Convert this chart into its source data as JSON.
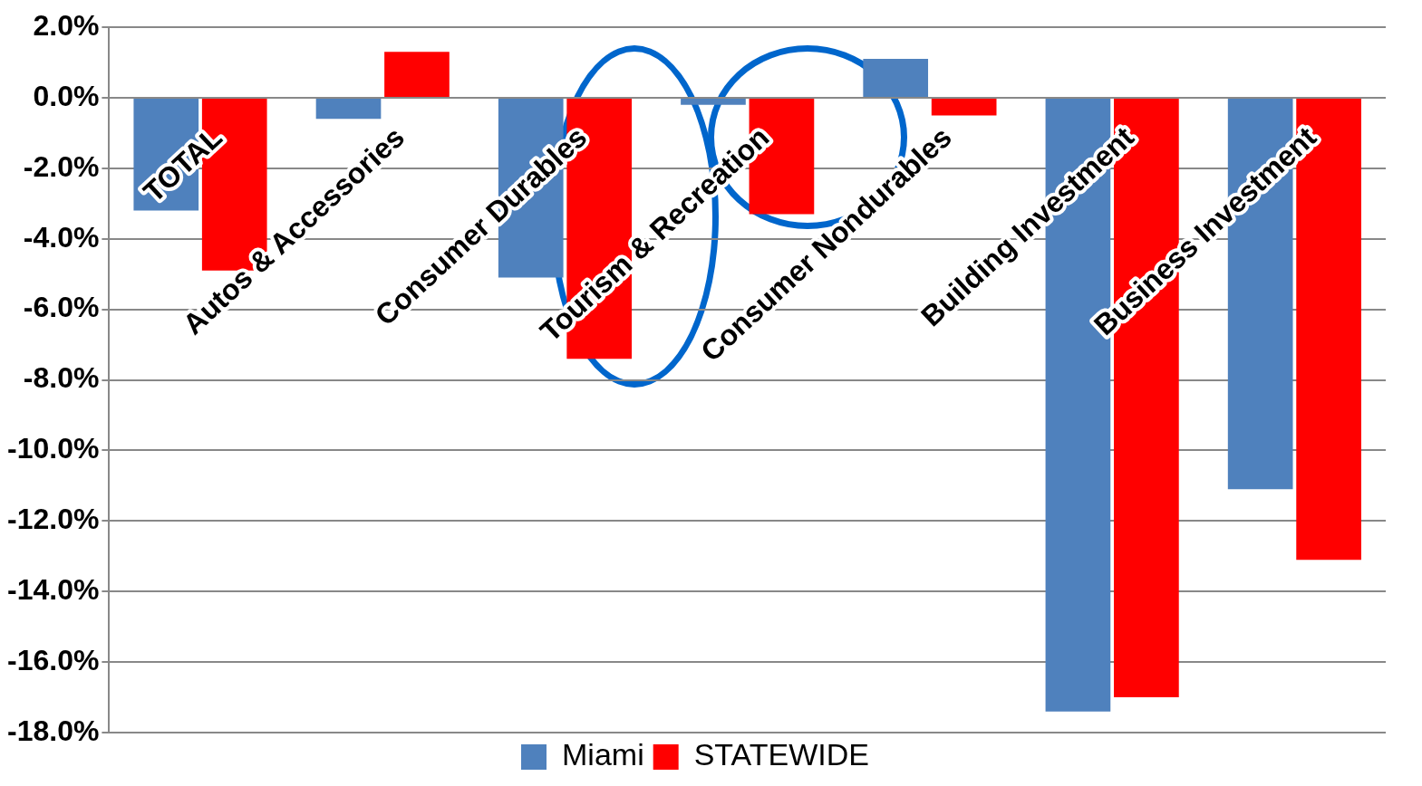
{
  "chart_data": {
    "type": "bar",
    "categories": [
      "TOTAL",
      "Autos & Accessories",
      "Consumer Durables",
      "Tourism & Recreation",
      "Consumer Nondurables",
      "Building Investment",
      "Business Investment"
    ],
    "series": [
      {
        "name": "Miami",
        "color": "#4f81bd",
        "values": [
          -3.2,
          -0.6,
          -5.1,
          -0.2,
          1.1,
          -17.4,
          -11.1
        ]
      },
      {
        "name": "STATEWIDE",
        "color": "#ff0000",
        "values": [
          -4.9,
          1.3,
          -7.4,
          -3.3,
          -0.5,
          -17.0,
          -13.1
        ]
      }
    ],
    "ylim": [
      -18,
      2
    ],
    "yticks": [
      {
        "value": 2,
        "label": "2.0%"
      },
      {
        "value": 0,
        "label": "0.0%"
      },
      {
        "value": -2,
        "label": "-2.0%"
      },
      {
        "value": -4,
        "label": "-4.0%"
      },
      {
        "value": -6,
        "label": "-6.0%"
      },
      {
        "value": -8,
        "label": "-8.0%"
      },
      {
        "value": -10,
        "label": "-10.0%"
      },
      {
        "value": -12,
        "label": "-12.0%"
      },
      {
        "value": -14,
        "label": "-14.0%"
      },
      {
        "value": -16,
        "label": "-16.0%"
      },
      {
        "value": -18,
        "label": "-18.0%"
      }
    ],
    "grid": "y",
    "legend": "bottom"
  }
}
